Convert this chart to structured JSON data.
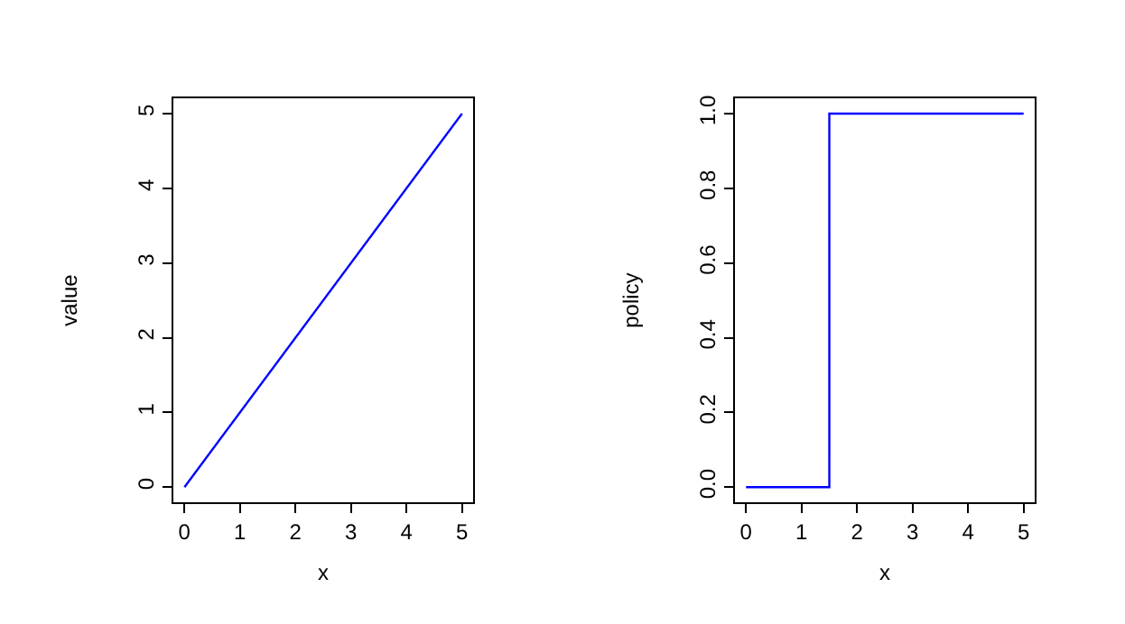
{
  "chart_data": [
    {
      "type": "line",
      "xlabel": "x",
      "ylabel": "value",
      "x": [
        0,
        5
      ],
      "series": [
        {
          "color": "#0000ff",
          "values": [
            0,
            5
          ]
        }
      ],
      "xlim": [
        -0.2,
        5.2
      ],
      "xticks": [
        0,
        1,
        2,
        3,
        4,
        5
      ],
      "ylim": [
        -0.2,
        5.2
      ],
      "yticks": [
        0,
        1,
        2,
        3,
        4,
        5
      ]
    },
    {
      "type": "step",
      "xlabel": "x",
      "ylabel": "policy",
      "x": [
        0,
        1.5,
        5
      ],
      "series": [
        {
          "color": "#0000ff",
          "values": [
            0,
            1,
            1
          ]
        }
      ],
      "xlim": [
        -0.2,
        5.2
      ],
      "xticks": [
        0,
        1,
        2,
        3,
        4,
        5
      ],
      "ylim": [
        -0.04,
        1.04
      ],
      "yticks": [
        {
          "value": 0,
          "label": "0.0"
        },
        {
          "value": 0.2,
          "label": "0.2"
        },
        {
          "value": 0.4,
          "label": "0.4"
        },
        {
          "value": 0.6,
          "label": "0.6"
        },
        {
          "value": 0.8,
          "label": "0.8"
        },
        {
          "value": 1,
          "label": "1.0"
        }
      ]
    }
  ]
}
